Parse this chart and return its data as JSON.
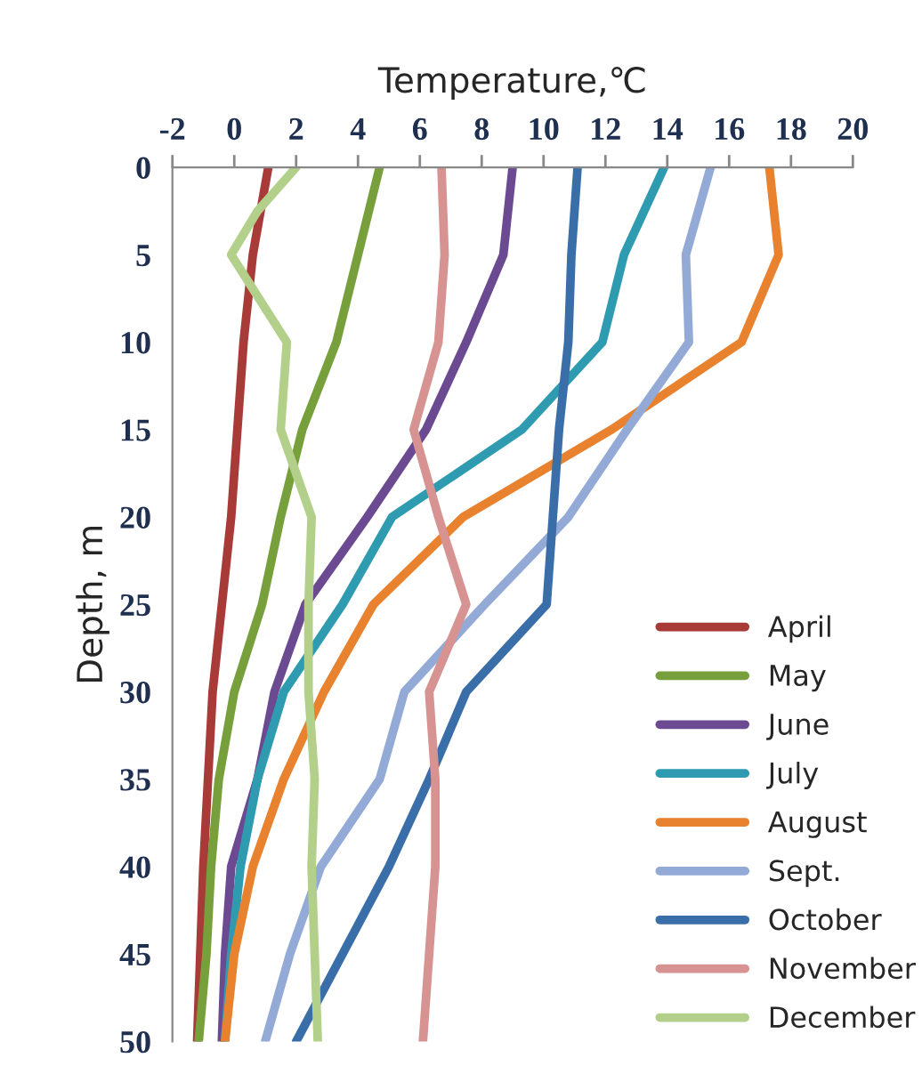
{
  "chart_data": {
    "type": "line",
    "xlabel": "Temperature,℃",
    "ylabel": "Depth, m",
    "xlim": [
      -2,
      20
    ],
    "xticks": [
      -2,
      0,
      2,
      4,
      6,
      8,
      10,
      12,
      14,
      16,
      18,
      20
    ],
    "ylim": [
      50,
      0
    ],
    "yticks": [
      0,
      5,
      10,
      15,
      20,
      25,
      30,
      35,
      40,
      45,
      50
    ],
    "grid": false,
    "legend": "bottom right",
    "marker": "none",
    "line_style": "solid",
    "series": [
      {
        "name": "April",
        "color": "#a83a37",
        "x": [
          1.1,
          0.6,
          0.3,
          0.1,
          -0.1,
          -0.4,
          -0.7,
          -0.85,
          -1.0,
          -1.1,
          -1.2
        ],
        "values": [
          0,
          5,
          10,
          15,
          20,
          25,
          30,
          35,
          40,
          45,
          50
        ]
      },
      {
        "name": "May",
        "color": "#77a03c",
        "x": [
          4.7,
          4.0,
          3.3,
          2.2,
          1.5,
          0.9,
          0.0,
          -0.5,
          -0.75,
          -0.9,
          -1.15
        ],
        "values": [
          0,
          5,
          10,
          15,
          20,
          25,
          30,
          35,
          40,
          45,
          50
        ]
      },
      {
        "name": "June",
        "color": "#6b4a92",
        "x": [
          9.0,
          8.7,
          7.5,
          6.2,
          4.3,
          2.3,
          1.3,
          0.75,
          -0.1,
          -0.3,
          -0.4
        ],
        "values": [
          0,
          5,
          10,
          15,
          20,
          25,
          30,
          35,
          40,
          45,
          50
        ]
      },
      {
        "name": "July",
        "color": "#2e9bb0",
        "x": [
          13.9,
          12.6,
          11.9,
          9.3,
          5.1,
          3.5,
          1.6,
          0.75,
          0.2,
          -0.1,
          -0.3
        ],
        "values": [
          0,
          5,
          10,
          15,
          20,
          25,
          30,
          35,
          40,
          45,
          50
        ]
      },
      {
        "name": "August",
        "color": "#e8822f",
        "x": [
          17.3,
          17.6,
          16.4,
          12.2,
          7.4,
          4.5,
          2.9,
          1.6,
          0.6,
          0.0,
          -0.3
        ],
        "values": [
          0,
          5,
          10,
          15,
          20,
          25,
          30,
          35,
          40,
          45,
          50
        ]
      },
      {
        "name": "Sept.",
        "color": "#93aad7",
        "x": [
          15.4,
          14.6,
          14.7,
          12.7,
          10.8,
          8.1,
          5.5,
          4.7,
          2.8,
          1.8,
          1.0
        ],
        "values": [
          0,
          5,
          10,
          15,
          20,
          25,
          30,
          35,
          40,
          45,
          50
        ]
      },
      {
        "name": "October",
        "color": "#3a6ea8",
        "x": [
          11.1,
          10.9,
          10.8,
          10.5,
          10.3,
          10.1,
          7.5,
          6.3,
          5.0,
          3.5,
          2.0
        ],
        "values": [
          0,
          5,
          10,
          15,
          20,
          25,
          30,
          35,
          40,
          45,
          50
        ]
      },
      {
        "name": "November",
        "color": "#d79391",
        "x": [
          6.7,
          6.8,
          6.6,
          5.8,
          6.6,
          7.5,
          6.3,
          6.5,
          6.5,
          6.3,
          6.1
        ],
        "values": [
          0,
          5,
          10,
          15,
          20,
          25,
          30,
          35,
          40,
          45,
          50
        ]
      },
      {
        "name": "December",
        "color": "#b3d08b",
        "x": [
          2.0,
          0.75,
          -0.1,
          1.7,
          1.5,
          2.5,
          2.4,
          2.4,
          2.6,
          2.5,
          2.6,
          2.7
        ],
        "values": [
          0,
          2.5,
          5,
          10,
          15,
          20,
          25,
          30,
          35,
          40,
          45,
          50
        ]
      }
    ]
  }
}
